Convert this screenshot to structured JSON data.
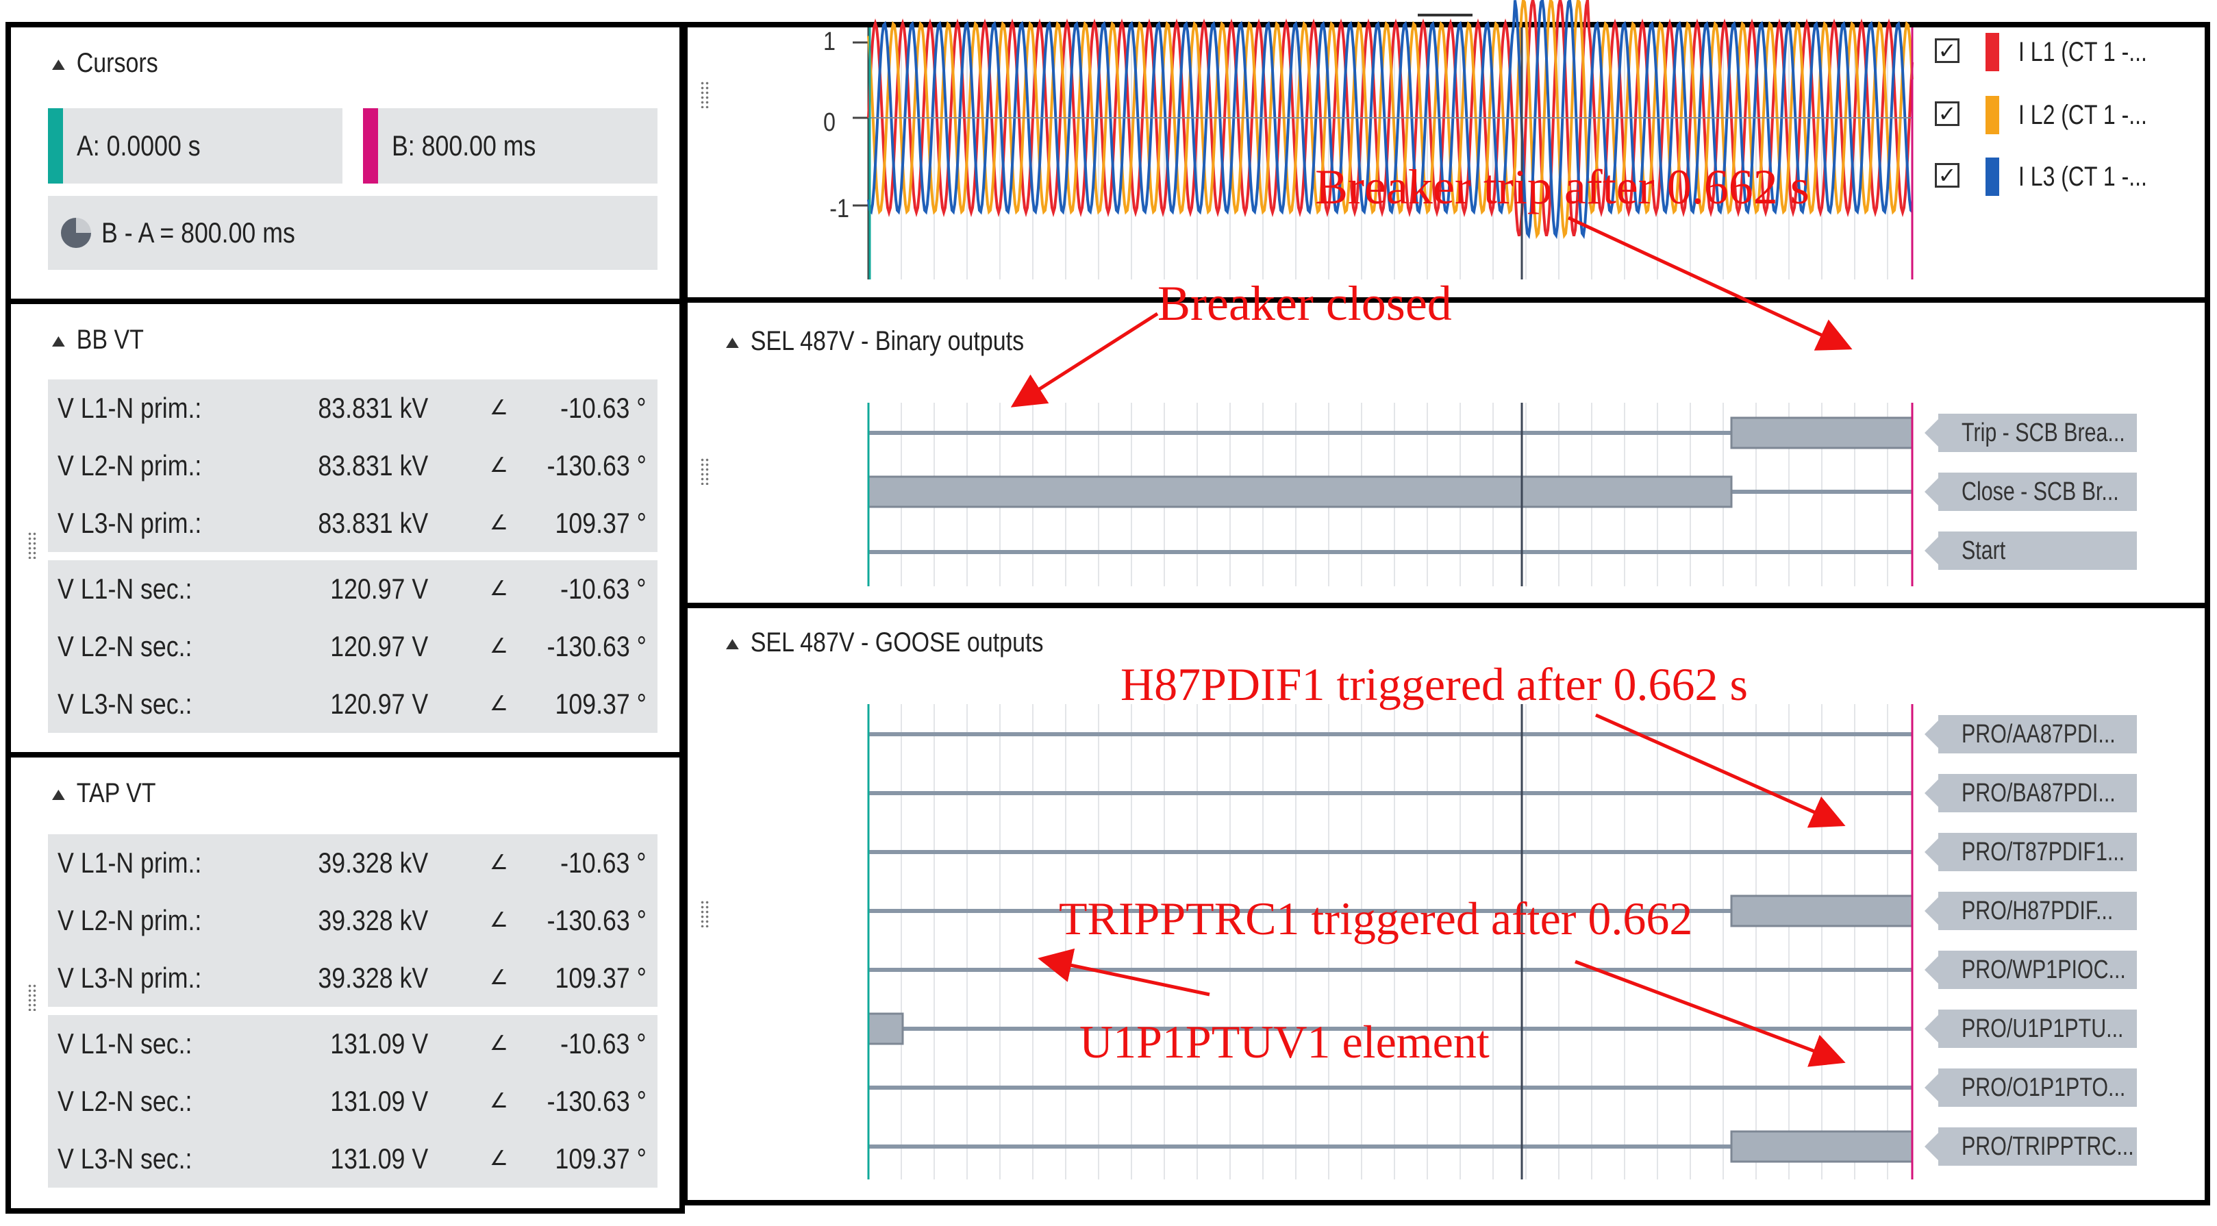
{
  "cursors": {
    "title": "Cursors",
    "a_label": "A: 0.0000 s",
    "b_label": "B: 800.00 ms",
    "diff_label": "B - A =  800.00 ms",
    "a_color": "#10a89a",
    "b_color": "#d4127a"
  },
  "bb_vt": {
    "title": "BB VT",
    "rows": [
      {
        "label": "V L1-N prim.:",
        "value": "83.831 kV",
        "angle_sym": "∠",
        "angle": "-10.63 °"
      },
      {
        "label": "V L2-N prim.:",
        "value": "83.831 kV",
        "angle_sym": "∠",
        "angle": "-130.63 °"
      },
      {
        "label": "V L3-N prim.:",
        "value": "83.831 kV",
        "angle_sym": "∠",
        "angle": "109.37 °"
      },
      {
        "label": "V L1-N sec.:",
        "value": "120.97 V",
        "angle_sym": "∠",
        "angle": "-10.63 °"
      },
      {
        "label": "V L2-N sec.:",
        "value": "120.97 V",
        "angle_sym": "∠",
        "angle": "-130.63 °"
      },
      {
        "label": "V L3-N sec.:",
        "value": "120.97 V",
        "angle_sym": "∠",
        "angle": "109.37 °"
      }
    ]
  },
  "tap_vt": {
    "title": "TAP VT",
    "rows": [
      {
        "label": "V L1-N prim.:",
        "value": "39.328 kV",
        "angle_sym": "∠",
        "angle": "-10.63 °"
      },
      {
        "label": "V L2-N prim.:",
        "value": "39.328 kV",
        "angle_sym": "∠",
        "angle": "-130.63 °"
      },
      {
        "label": "V L3-N prim.:",
        "value": "39.328 kV",
        "angle_sym": "∠",
        "angle": "109.37 °"
      },
      {
        "label": "V L1-N sec.:",
        "value": "131.09 V",
        "angle_sym": "∠",
        "angle": "-10.63 °"
      },
      {
        "label": "V L2-N sec.:",
        "value": "131.09 V",
        "angle_sym": "∠",
        "angle": "-130.63 °"
      },
      {
        "label": "V L3-N sec.:",
        "value": "131.09 V",
        "angle_sym": "∠",
        "angle": "109.37 °"
      }
    ]
  },
  "current_chart": {
    "y_ticks": [
      "1",
      "0",
      "-1"
    ],
    "legend": [
      {
        "label": "I L1 (CT 1 -...",
        "color": "#e8262d",
        "checked": "✓"
      },
      {
        "label": "I L2 (CT 1 -...",
        "color": "#f5a31a",
        "checked": "✓"
      },
      {
        "label": "I L3 (CT 1 -...",
        "color": "#1f5fb8",
        "checked": "✓"
      }
    ],
    "wave_colors": [
      "#e8262d",
      "#f5a31a",
      "#1f5fb8"
    ]
  },
  "binary_outputs": {
    "title": "SEL 487V - Binary outputs",
    "channels": [
      "Trip - SCB Brea...",
      "Close - SCB Br...",
      "Start"
    ]
  },
  "goose_outputs": {
    "title": "SEL 487V - GOOSE outputs",
    "channels": [
      "PRO/AA87PDI...",
      "PRO/BA87PDI...",
      "PRO/T87PDIF1...",
      "PRO/H87PDIF...",
      "PRO/WP1PIOC...",
      "PRO/U1P1PTU...",
      "PRO/O1P1PTO...",
      "PRO/TRIPPTRC..."
    ]
  },
  "annotations": {
    "breaker_trip": "Breaker trip after 0.662 s",
    "breaker_closed": "Breaker closed",
    "h87": "H87PDIF1 triggered after 0.662 s",
    "trip": "TRIPPTRC1 triggered after 0.662",
    "u1p1": "U1P1PTUV1 element"
  }
}
